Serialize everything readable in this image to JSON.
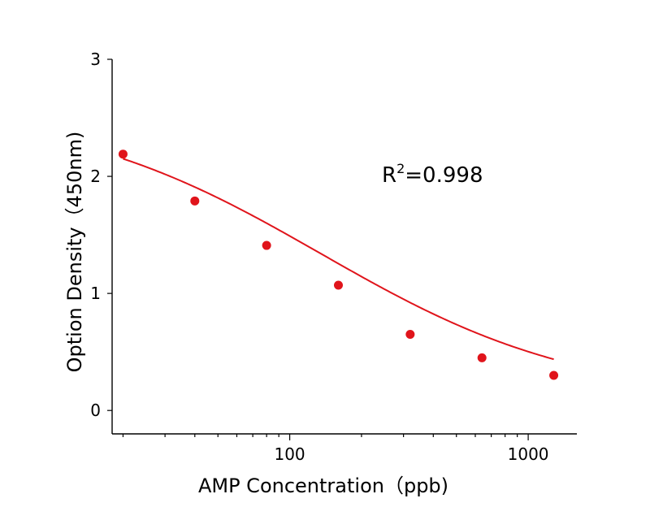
{
  "chart_data": {
    "type": "scatter",
    "xlabel": "AMP Concentration（ppb)",
    "ylabel": "Option Density（450nm)",
    "xscale": "log",
    "xlim": [
      18,
      1600
    ],
    "ylim": [
      -0.2,
      3
    ],
    "xticks": [
      100,
      1000
    ],
    "xtick_labels": [
      "100",
      "1000"
    ],
    "yticks": [
      0,
      1,
      2,
      3
    ],
    "ytick_labels": [
      "0",
      "1",
      "2",
      "3"
    ],
    "grid": false,
    "legend": "none",
    "points_color": "#e0141b",
    "curve_color": "#e0141b",
    "series": [
      {
        "points": [
          {
            "x": 20,
            "y": 2.19
          },
          {
            "x": 40,
            "y": 1.79
          },
          {
            "x": 80,
            "y": 1.41
          },
          {
            "x": 160,
            "y": 1.07
          },
          {
            "x": 320,
            "y": 0.65
          },
          {
            "x": 640,
            "y": 0.45
          },
          {
            "x": 1280,
            "y": 0.3
          }
        ],
        "fit": {
          "type": "4PL",
          "top": 2.6,
          "bottom": 0.08,
          "ec50": 135,
          "hill": 0.8
        }
      }
    ],
    "annotation": {
      "base": "R",
      "superscript": "2",
      "rest": "=0.998"
    }
  }
}
